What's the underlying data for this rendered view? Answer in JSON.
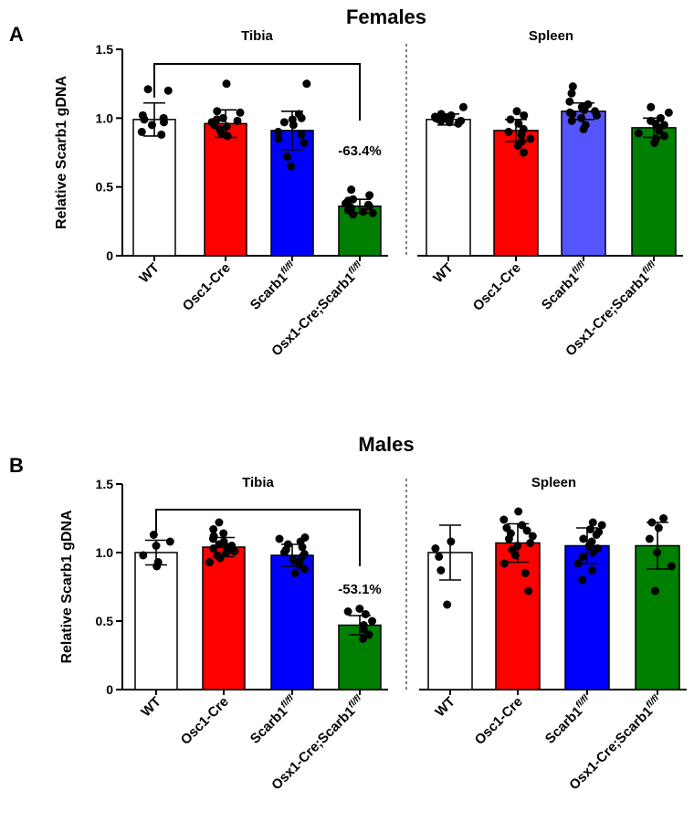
{
  "chart_data": [
    {
      "type": "bar",
      "panel_label": "A",
      "title": "Females",
      "ylabel": "Relative Scarb1 gDNA",
      "ylim": [
        0,
        1.5
      ],
      "yticks": [
        "0",
        "0.5",
        "1.0",
        "1.5"
      ],
      "groups": [
        {
          "name": "Tibia",
          "bars": [
            {
              "label": "WT",
              "superscript": "",
              "mean": 0.99,
              "sd": 0.12,
              "color": "#ffffff",
              "points": [
                0.88,
                0.9,
                0.95,
                0.97,
                0.99,
                1.0,
                1.02,
                1.2,
                1.21
              ]
            },
            {
              "label": "Osc1-Cre",
              "superscript": "",
              "mean": 0.96,
              "sd": 0.1,
              "color": "#ff0000",
              "points": [
                0.87,
                0.89,
                0.92,
                0.94,
                0.95,
                0.97,
                0.98,
                0.99,
                1.0,
                1.04,
                1.05,
                1.25
              ]
            },
            {
              "label": "Scarb1",
              "superscript": "fl/fl",
              "mean": 0.91,
              "sd": 0.14,
              "color": "#0000ff",
              "points": [
                0.65,
                0.72,
                0.82,
                0.85,
                0.88,
                0.9,
                0.95,
                0.97,
                0.99,
                1.0,
                1.03,
                1.25
              ]
            },
            {
              "label": "Osx1-Cre;Scarb1",
              "superscript": "fl/fl",
              "mean": 0.36,
              "sd": 0.05,
              "color": "#008000",
              "points": [
                0.3,
                0.31,
                0.32,
                0.33,
                0.35,
                0.36,
                0.37,
                0.38,
                0.4,
                0.41,
                0.44,
                0.48
              ]
            }
          ],
          "comparison": {
            "from": 0,
            "to": 3,
            "label": "-63.4%"
          }
        },
        {
          "name": "Spleen",
          "bars": [
            {
              "label": "WT",
              "superscript": "",
              "mean": 0.99,
              "sd": 0.04,
              "color": "#ffffff",
              "points": [
                0.96,
                0.97,
                0.98,
                0.98,
                0.99,
                1.0,
                1.0,
                1.01,
                1.02,
                1.03,
                1.08
              ]
            },
            {
              "label": "Osc1-Cre",
              "superscript": "",
              "mean": 0.91,
              "sd": 0.08,
              "color": "#ff0000",
              "points": [
                0.75,
                0.8,
                0.83,
                0.85,
                0.88,
                0.9,
                0.92,
                0.96,
                0.99,
                1.02,
                1.05
              ]
            },
            {
              "label": "Scarb1",
              "superscript": "fl/fl",
              "mean": 1.05,
              "sd": 0.06,
              "color": "#5555ff",
              "points": [
                0.92,
                0.95,
                0.98,
                1.0,
                1.02,
                1.03,
                1.04,
                1.05,
                1.06,
                1.08,
                1.1,
                1.12,
                1.18,
                1.23
              ]
            },
            {
              "label": "Osx1-Cre;Scarb1",
              "superscript": "fl/fl",
              "mean": 0.93,
              "sd": 0.07,
              "color": "#008000",
              "points": [
                0.82,
                0.85,
                0.87,
                0.89,
                0.91,
                0.93,
                0.95,
                0.96,
                0.98,
                1.0,
                1.04,
                1.08
              ]
            }
          ]
        }
      ]
    },
    {
      "type": "bar",
      "panel_label": "B",
      "title": "Males",
      "ylabel": "Relative Scarb1 gDNA",
      "ylim": [
        0,
        1.5
      ],
      "yticks": [
        "0",
        "0.5",
        "1.0",
        "1.5"
      ],
      "groups": [
        {
          "name": "Tibia",
          "bars": [
            {
              "label": "WT",
              "superscript": "",
              "mean": 1.0,
              "sd": 0.09,
              "color": "#ffffff",
              "points": [
                0.9,
                0.93,
                0.98,
                1.05,
                1.08,
                1.13
              ]
            },
            {
              "label": "Osc1-Cre",
              "superscript": "",
              "mean": 1.04,
              "sd": 0.07,
              "color": "#ff0000",
              "points": [
                0.93,
                0.96,
                0.98,
                1.0,
                1.01,
                1.02,
                1.03,
                1.04,
                1.05,
                1.06,
                1.08,
                1.1,
                1.12,
                1.14,
                1.17,
                1.22
              ]
            },
            {
              "label": "Scarb1",
              "superscript": "fl/fl",
              "mean": 0.98,
              "sd": 0.08,
              "color": "#0000ff",
              "points": [
                0.85,
                0.88,
                0.91,
                0.93,
                0.95,
                0.97,
                0.99,
                1.0,
                1.02,
                1.04,
                1.06,
                1.08,
                1.1,
                1.11
              ]
            },
            {
              "label": "Osx1-Cre;Scarb1",
              "superscript": "fl/fl",
              "mean": 0.47,
              "sd": 0.07,
              "color": "#008000",
              "points": [
                0.37,
                0.4,
                0.44,
                0.47,
                0.5,
                0.55,
                0.57,
                0.59
              ]
            }
          ],
          "comparison": {
            "from": 0,
            "to": 3,
            "label": "-53.1%"
          }
        },
        {
          "name": "Spleen",
          "bars": [
            {
              "label": "WT",
              "superscript": "",
              "mean": 1.0,
              "sd": 0.2,
              "color": "#ffffff",
              "points": [
                0.62,
                0.87,
                0.97,
                1.03,
                1.08
              ]
            },
            {
              "label": "Osc1-Cre",
              "superscript": "",
              "mean": 1.07,
              "sd": 0.14,
              "color": "#ff0000",
              "points": [
                0.72,
                0.85,
                0.92,
                0.98,
                1.02,
                1.05,
                1.07,
                1.1,
                1.12,
                1.14,
                1.16,
                1.18,
                1.2,
                1.24,
                1.3
              ]
            },
            {
              "label": "Scarb1",
              "superscript": "fl/fl",
              "mean": 1.05,
              "sd": 0.13,
              "color": "#0000ff",
              "points": [
                0.8,
                0.87,
                0.92,
                0.97,
                1.0,
                1.03,
                1.05,
                1.08,
                1.1,
                1.13,
                1.15,
                1.17,
                1.2,
                1.22
              ]
            },
            {
              "label": "Osx1-Cre;Scarb1",
              "superscript": "fl/fl",
              "mean": 1.05,
              "sd": 0.17,
              "color": "#008000",
              "points": [
                0.72,
                0.9,
                1.0,
                1.1,
                1.18,
                1.22,
                1.25
              ]
            }
          ]
        }
      ]
    }
  ]
}
